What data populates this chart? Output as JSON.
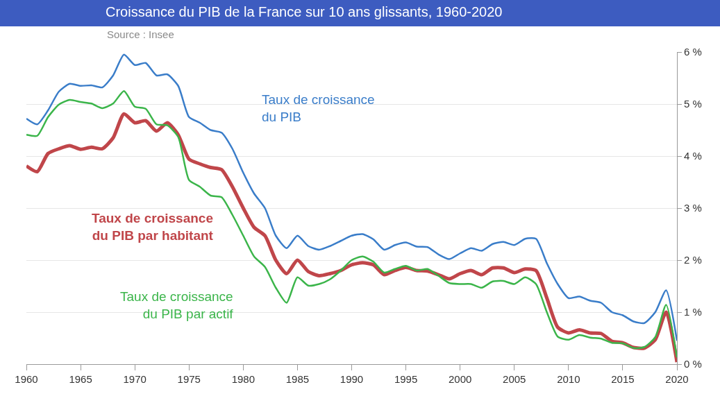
{
  "chart_data": {
    "type": "line",
    "title": "Croissance du PIB de la France sur 10 ans glissants, 1960-2020",
    "annotations": [
      "Source : Insee"
    ],
    "x": [
      1960,
      1961,
      1962,
      1963,
      1964,
      1965,
      1966,
      1967,
      1968,
      1969,
      1970,
      1971,
      1972,
      1973,
      1974,
      1975,
      1976,
      1977,
      1978,
      1979,
      1980,
      1981,
      1982,
      1983,
      1984,
      1985,
      1986,
      1987,
      1988,
      1989,
      1990,
      1991,
      1992,
      1993,
      1994,
      1995,
      1996,
      1997,
      1998,
      1999,
      2000,
      2001,
      2002,
      2003,
      2004,
      2005,
      2006,
      2007,
      2008,
      2009,
      2010,
      2011,
      2012,
      2013,
      2014,
      2015,
      2016,
      2017,
      2018,
      2019,
      2020
    ],
    "series": [
      {
        "name": "Taux de croissance du PIB",
        "color": "#3a7dc9",
        "values": [
          4.72,
          4.61,
          4.88,
          5.24,
          5.39,
          5.35,
          5.36,
          5.32,
          5.55,
          5.95,
          5.75,
          5.79,
          5.55,
          5.57,
          5.35,
          4.75,
          4.64,
          4.5,
          4.45,
          4.14,
          3.68,
          3.28,
          3.0,
          2.47,
          2.23,
          2.47,
          2.27,
          2.2,
          2.27,
          2.37,
          2.47,
          2.5,
          2.4,
          2.2,
          2.29,
          2.34,
          2.26,
          2.25,
          2.11,
          2.02,
          2.13,
          2.23,
          2.18,
          2.31,
          2.35,
          2.29,
          2.41,
          2.41,
          1.94,
          1.54,
          1.27,
          1.3,
          1.22,
          1.18,
          1.0,
          0.94,
          0.82,
          0.79,
          1.0,
          1.42,
          0.45
        ]
      },
      {
        "name": "Taux de croissance du PIB par habitant",
        "color": "#c0464a",
        "values": [
          3.81,
          3.7,
          4.05,
          4.14,
          4.2,
          4.13,
          4.17,
          4.14,
          4.35,
          4.81,
          4.64,
          4.68,
          4.48,
          4.64,
          4.41,
          3.94,
          3.85,
          3.78,
          3.74,
          3.41,
          3.0,
          2.63,
          2.47,
          2.0,
          1.74,
          2.0,
          1.78,
          1.7,
          1.74,
          1.8,
          1.91,
          1.95,
          1.91,
          1.72,
          1.8,
          1.86,
          1.8,
          1.79,
          1.72,
          1.64,
          1.74,
          1.8,
          1.72,
          1.85,
          1.85,
          1.76,
          1.83,
          1.8,
          1.27,
          0.71,
          0.6,
          0.66,
          0.6,
          0.59,
          0.44,
          0.41,
          0.32,
          0.31,
          0.47,
          1.0,
          0.04
        ]
      },
      {
        "name": "Taux de croissance du PIB par actif",
        "color": "#3bb54a",
        "values": [
          4.41,
          4.39,
          4.75,
          4.99,
          5.08,
          5.04,
          5.01,
          4.92,
          5.01,
          5.25,
          4.95,
          4.91,
          4.61,
          4.59,
          4.37,
          3.54,
          3.41,
          3.24,
          3.21,
          2.87,
          2.47,
          2.07,
          1.87,
          1.47,
          1.18,
          1.67,
          1.51,
          1.54,
          1.63,
          1.8,
          2.0,
          2.07,
          1.97,
          1.76,
          1.83,
          1.89,
          1.8,
          1.83,
          1.7,
          1.56,
          1.54,
          1.54,
          1.47,
          1.59,
          1.6,
          1.54,
          1.67,
          1.54,
          1.0,
          0.53,
          0.47,
          0.56,
          0.51,
          0.49,
          0.41,
          0.4,
          0.31,
          0.33,
          0.52,
          1.14,
          0.13
        ]
      }
    ],
    "xlim": [
      1960,
      2020
    ],
    "xticks": [
      1960,
      1965,
      1970,
      1975,
      1980,
      1985,
      1990,
      1995,
      2000,
      2005,
      2010,
      2015,
      2020
    ],
    "ylim": [
      0,
      6
    ],
    "yticks": [
      {
        "value": 0,
        "label": "0 %"
      },
      {
        "value": 1,
        "label": "1 %"
      },
      {
        "value": 2,
        "label": "2 %"
      },
      {
        "value": 3,
        "label": "3 %"
      },
      {
        "value": 4,
        "label": "4 %"
      },
      {
        "value": 5,
        "label": "5 %"
      },
      {
        "value": 6,
        "label": "6 %"
      }
    ],
    "grid": "y",
    "legend": false,
    "marker": "none",
    "line_style": "solid"
  }
}
